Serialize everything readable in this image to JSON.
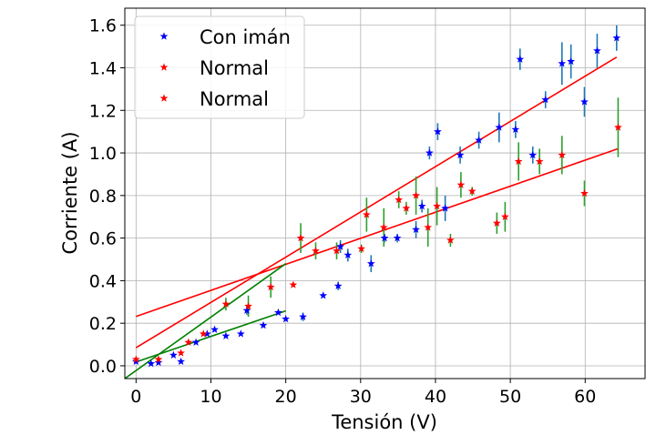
{
  "chart_data": {
    "type": "scatter",
    "xlabel": "Tensión (V)",
    "ylabel": "Corriente (A)",
    "xlim": [
      -1.5,
      68
    ],
    "ylim": [
      -0.06,
      1.68
    ],
    "xticks": [
      0,
      10,
      20,
      30,
      40,
      50,
      60
    ],
    "yticks": [
      0.0,
      0.2,
      0.4,
      0.6,
      0.8,
      1.0,
      1.2,
      1.4,
      1.6
    ],
    "xtick_labels": [
      "0",
      "10",
      "20",
      "30",
      "40",
      "50",
      "60"
    ],
    "ytick_labels": [
      "0.0",
      "0.2",
      "0.4",
      "0.6",
      "0.8",
      "1.0",
      "1.2",
      "1.4",
      "1.6"
    ],
    "grid": true,
    "legend_position": "top-left",
    "legend": [
      "Con imán",
      "Normal",
      "Normal"
    ],
    "series": [
      {
        "name": "Con imán",
        "marker_color": "#0000ff",
        "errorbar_color": "#1f77b4",
        "points": [
          {
            "x": 0,
            "y": 0.02,
            "err": 0
          },
          {
            "x": 2,
            "y": 0.01,
            "err": 0
          },
          {
            "x": 3,
            "y": 0.015,
            "err": 0
          },
          {
            "x": 5,
            "y": 0.05,
            "err": 0
          },
          {
            "x": 6,
            "y": 0.02,
            "err": 0
          },
          {
            "x": 8,
            "y": 0.11,
            "err": 0
          },
          {
            "x": 9.5,
            "y": 0.15,
            "err": 0
          },
          {
            "x": 10.5,
            "y": 0.17,
            "err": 0
          },
          {
            "x": 12,
            "y": 0.14,
            "err": 0
          },
          {
            "x": 14,
            "y": 0.15,
            "err": 0
          },
          {
            "x": 14.8,
            "y": 0.26,
            "err": 0.02
          },
          {
            "x": 17,
            "y": 0.19,
            "err": 0
          },
          {
            "x": 19,
            "y": 0.25,
            "err": 0
          },
          {
            "x": 20,
            "y": 0.22,
            "err": 0
          },
          {
            "x": 22.3,
            "y": 0.23,
            "err": 0.02
          },
          {
            "x": 25,
            "y": 0.33,
            "err": 0
          },
          {
            "x": 27,
            "y": 0.375,
            "err": 0.02
          },
          {
            "x": 27.3,
            "y": 0.56,
            "err": 0.03
          },
          {
            "x": 28.3,
            "y": 0.52,
            "err": 0.03
          },
          {
            "x": 31.4,
            "y": 0.48,
            "err": 0.04
          },
          {
            "x": 33.2,
            "y": 0.6,
            "err": 0.02
          },
          {
            "x": 34.9,
            "y": 0.6,
            "err": 0.02
          },
          {
            "x": 37.4,
            "y": 0.64,
            "err": 0.04
          },
          {
            "x": 38.2,
            "y": 0.75,
            "err": 0.03
          },
          {
            "x": 39.2,
            "y": 1.0,
            "err": 0.03
          },
          {
            "x": 40.3,
            "y": 1.1,
            "err": 0.04
          },
          {
            "x": 41.3,
            "y": 0.74,
            "err": 0.06
          },
          {
            "x": 43.3,
            "y": 0.99,
            "err": 0.04
          },
          {
            "x": 45.8,
            "y": 1.06,
            "err": 0.04
          },
          {
            "x": 48.5,
            "y": 1.12,
            "err": 0.07
          },
          {
            "x": 50.7,
            "y": 1.11,
            "err": 0.04
          },
          {
            "x": 51.3,
            "y": 1.44,
            "err": 0.05
          },
          {
            "x": 53,
            "y": 0.99,
            "err": 0.04
          },
          {
            "x": 54.7,
            "y": 1.25,
            "err": 0.04
          },
          {
            "x": 56.9,
            "y": 1.42,
            "err": 0.1
          },
          {
            "x": 58.1,
            "y": 1.43,
            "err": 0.08
          },
          {
            "x": 59.9,
            "y": 1.24,
            "err": 0.07
          },
          {
            "x": 61.6,
            "y": 1.48,
            "err": 0.08
          },
          {
            "x": 64.2,
            "y": 1.54,
            "err": 0.06
          }
        ]
      },
      {
        "name": "Normal",
        "marker_color": "#ff0000",
        "errorbar_color": "#2ca02c",
        "points": [
          {
            "x": 0,
            "y": 0.03,
            "err": 0
          },
          {
            "x": 3,
            "y": 0.03,
            "err": 0
          },
          {
            "x": 6,
            "y": 0.06,
            "err": 0
          },
          {
            "x": 7,
            "y": 0.11,
            "err": 0
          },
          {
            "x": 9,
            "y": 0.15,
            "err": 0
          },
          {
            "x": 12,
            "y": 0.29,
            "err": 0.03
          },
          {
            "x": 15,
            "y": 0.28,
            "err": 0.05
          },
          {
            "x": 18,
            "y": 0.37,
            "err": 0.05
          },
          {
            "x": 21,
            "y": 0.38,
            "err": 0
          },
          {
            "x": 22,
            "y": 0.6,
            "err": 0.07
          },
          {
            "x": 24,
            "y": 0.54,
            "err": 0.04
          },
          {
            "x": 26.8,
            "y": 0.54,
            "err": 0.04
          },
          {
            "x": 30.1,
            "y": 0.55,
            "err": 0.02
          },
          {
            "x": 30.8,
            "y": 0.71,
            "err": 0.08
          },
          {
            "x": 33.1,
            "y": 0.65,
            "err": 0.09
          },
          {
            "x": 35.1,
            "y": 0.78,
            "err": 0.04
          },
          {
            "x": 36.1,
            "y": 0.74,
            "err": 0.03
          },
          {
            "x": 37.4,
            "y": 0.8,
            "err": 0.09
          },
          {
            "x": 39,
            "y": 0.65,
            "err": 0.09
          },
          {
            "x": 40.2,
            "y": 0.75,
            "err": 0.09
          },
          {
            "x": 42,
            "y": 0.59,
            "err": 0.03
          },
          {
            "x": 43.4,
            "y": 0.85,
            "err": 0.06
          },
          {
            "x": 44.9,
            "y": 0.82,
            "err": 0.02
          },
          {
            "x": 48.2,
            "y": 0.67,
            "err": 0.05
          },
          {
            "x": 49.3,
            "y": 0.7,
            "err": 0.07
          },
          {
            "x": 51.1,
            "y": 0.96,
            "err": 0.09
          },
          {
            "x": 53.9,
            "y": 0.96,
            "err": 0.06
          },
          {
            "x": 56.9,
            "y": 0.99,
            "err": 0.09
          },
          {
            "x": 59.9,
            "y": 0.81,
            "err": 0.06
          },
          {
            "x": 64.4,
            "y": 1.12,
            "err": 0.14
          }
        ]
      }
    ],
    "fit_lines": [
      {
        "series": "Con imán",
        "color": "#ff0000",
        "x": [
          0,
          64.2
        ],
        "y": [
          0.085,
          1.45
        ]
      },
      {
        "series": "Normal",
        "color": "#ff0000",
        "x": [
          0,
          64.4
        ],
        "y": [
          0.232,
          1.02
        ]
      },
      {
        "series": "Con imán",
        "color": "#008000",
        "x": [
          -1.5,
          20
        ],
        "y": [
          -0.06,
          0.48
        ]
      },
      {
        "series": "Normal",
        "color": "#008000",
        "x": [
          0,
          20
        ],
        "y": [
          0.018,
          0.258
        ]
      }
    ]
  }
}
